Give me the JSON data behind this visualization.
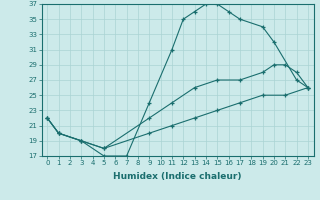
{
  "xlabel": "Humidex (Indice chaleur)",
  "ylabel": "",
  "bg_color": "#cceaea",
  "grid_color": "#aad4d4",
  "line_color": "#1a6e6e",
  "xlim": [
    -0.5,
    23.5
  ],
  "ylim": [
    17,
    37
  ],
  "yticks": [
    17,
    19,
    21,
    23,
    25,
    27,
    29,
    31,
    33,
    35,
    37
  ],
  "xticks": [
    0,
    1,
    2,
    3,
    4,
    5,
    6,
    7,
    8,
    9,
    10,
    11,
    12,
    13,
    14,
    15,
    16,
    17,
    18,
    19,
    20,
    21,
    22,
    23
  ],
  "line1_x": [
    0,
    1,
    3,
    5,
    7,
    9,
    11,
    12,
    13,
    14,
    15,
    16,
    17,
    19,
    20,
    22,
    23
  ],
  "line1_y": [
    22,
    20,
    19,
    17,
    17,
    24,
    31,
    35,
    36,
    37,
    37,
    36,
    35,
    34,
    32,
    27,
    26
  ],
  "line2_x": [
    0,
    1,
    3,
    5,
    9,
    11,
    13,
    15,
    17,
    19,
    20,
    21,
    22,
    23
  ],
  "line2_y": [
    22,
    20,
    19,
    18,
    22,
    24,
    26,
    27,
    27,
    28,
    29,
    29,
    28,
    26
  ],
  "line3_x": [
    0,
    1,
    3,
    5,
    9,
    11,
    13,
    15,
    17,
    19,
    21,
    23
  ],
  "line3_y": [
    22,
    20,
    19,
    18,
    20,
    21,
    22,
    23,
    24,
    25,
    25,
    26
  ]
}
